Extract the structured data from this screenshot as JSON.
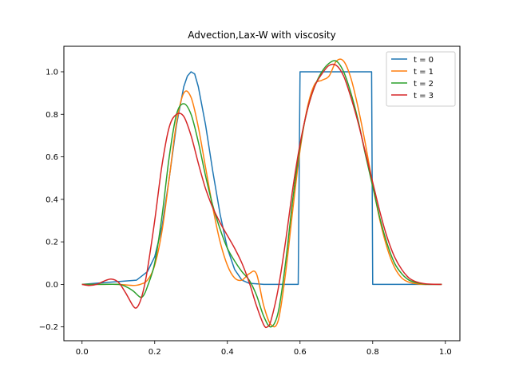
{
  "chart_data": {
    "type": "line",
    "title": "Advection,Lax-W with viscosity",
    "xlabel": "",
    "ylabel": "",
    "xlim": [
      -0.05,
      1.04
    ],
    "ylim": [
      -0.265,
      1.12
    ],
    "xticks": [
      0.0,
      0.2,
      0.4,
      0.6,
      0.8,
      1.0
    ],
    "xtick_labels": [
      "0.0",
      "0.2",
      "0.4",
      "0.6",
      "0.8",
      "1.0"
    ],
    "yticks": [
      -0.2,
      0.0,
      0.2,
      0.4,
      0.6,
      0.8,
      1.0
    ],
    "ytick_labels": [
      "−0.2",
      "0.0",
      "0.2",
      "0.4",
      "0.6",
      "0.8",
      "1.0"
    ],
    "grid": false,
    "legend_position": "top-right",
    "series": [
      {
        "name": "t = 0",
        "color": "#1f77b4",
        "x": [
          0.0,
          0.15,
          0.18,
          0.2,
          0.22,
          0.24,
          0.26,
          0.28,
          0.29,
          0.3,
          0.31,
          0.32,
          0.34,
          0.36,
          0.38,
          0.4,
          0.42,
          0.44,
          0.46,
          0.5,
          0.55,
          0.595,
          0.6,
          0.65,
          0.7,
          0.75,
          0.797,
          0.8,
          0.85,
          0.9,
          0.95,
          0.99
        ],
        "y": [
          0.0,
          0.02,
          0.06,
          0.13,
          0.27,
          0.5,
          0.75,
          0.93,
          0.98,
          1.0,
          0.99,
          0.93,
          0.75,
          0.53,
          0.33,
          0.17,
          0.07,
          0.02,
          0.005,
          0.0,
          0.0,
          0.0,
          1.0,
          1.0,
          1.0,
          1.0,
          1.0,
          0.0,
          0.0,
          0.0,
          0.0,
          0.0
        ]
      },
      {
        "name": "t = 1",
        "color": "#ff7f0e",
        "x": [
          0.0,
          0.05,
          0.1,
          0.14,
          0.16,
          0.18,
          0.2,
          0.22,
          0.24,
          0.26,
          0.28,
          0.3,
          0.32,
          0.34,
          0.36,
          0.38,
          0.4,
          0.42,
          0.44,
          0.46,
          0.48,
          0.5,
          0.52,
          0.54,
          0.56,
          0.58,
          0.6,
          0.62,
          0.64,
          0.66,
          0.68,
          0.7,
          0.72,
          0.74,
          0.76,
          0.78,
          0.8,
          0.82,
          0.84,
          0.86,
          0.88,
          0.9,
          0.92,
          0.94,
          0.96,
          0.99
        ],
        "y": [
          0.0,
          0.0,
          0.0,
          -0.005,
          0.0,
          0.02,
          0.09,
          0.25,
          0.5,
          0.76,
          0.9,
          0.88,
          0.74,
          0.55,
          0.36,
          0.2,
          0.09,
          0.03,
          0.02,
          0.05,
          0.05,
          -0.1,
          -0.19,
          -0.17,
          0.05,
          0.35,
          0.63,
          0.83,
          0.94,
          0.96,
          0.98,
          1.05,
          1.05,
          0.97,
          0.83,
          0.66,
          0.47,
          0.3,
          0.17,
          0.08,
          0.03,
          0.01,
          0.003,
          0.0,
          0.0,
          0.0
        ]
      },
      {
        "name": "t = 2",
        "color": "#2ca02c",
        "x": [
          0.0,
          0.05,
          0.1,
          0.12,
          0.14,
          0.16,
          0.17,
          0.18,
          0.2,
          0.22,
          0.24,
          0.26,
          0.28,
          0.3,
          0.32,
          0.34,
          0.36,
          0.38,
          0.4,
          0.42,
          0.44,
          0.46,
          0.48,
          0.5,
          0.52,
          0.54,
          0.56,
          0.58,
          0.6,
          0.62,
          0.64,
          0.66,
          0.68,
          0.7,
          0.72,
          0.74,
          0.76,
          0.78,
          0.8,
          0.82,
          0.84,
          0.86,
          0.88,
          0.9,
          0.92,
          0.94,
          0.96,
          0.99
        ],
        "y": [
          0.0,
          0.0,
          0.0,
          -0.01,
          -0.03,
          -0.06,
          -0.05,
          -0.01,
          0.1,
          0.32,
          0.6,
          0.8,
          0.85,
          0.8,
          0.67,
          0.51,
          0.37,
          0.26,
          0.17,
          0.11,
          0.06,
          0.02,
          -0.05,
          -0.15,
          -0.2,
          -0.13,
          0.1,
          0.4,
          0.65,
          0.82,
          0.93,
          1.0,
          1.04,
          1.05,
          1.0,
          0.9,
          0.77,
          0.61,
          0.46,
          0.31,
          0.19,
          0.1,
          0.05,
          0.02,
          0.008,
          0.002,
          0.0,
          0.0
        ]
      },
      {
        "name": "t = 3",
        "color": "#d62728",
        "x": [
          0.0,
          0.02,
          0.04,
          0.06,
          0.08,
          0.1,
          0.12,
          0.14,
          0.15,
          0.16,
          0.17,
          0.18,
          0.2,
          0.22,
          0.24,
          0.26,
          0.28,
          0.3,
          0.32,
          0.34,
          0.36,
          0.38,
          0.4,
          0.42,
          0.44,
          0.46,
          0.48,
          0.5,
          0.51,
          0.52,
          0.54,
          0.56,
          0.58,
          0.6,
          0.62,
          0.64,
          0.66,
          0.68,
          0.7,
          0.72,
          0.74,
          0.76,
          0.78,
          0.8,
          0.82,
          0.84,
          0.86,
          0.88,
          0.9,
          0.92,
          0.94,
          0.96,
          0.99
        ],
        "y": [
          0.0,
          -0.005,
          0.0,
          0.015,
          0.025,
          0.01,
          -0.04,
          -0.1,
          -0.11,
          -0.08,
          -0.02,
          0.07,
          0.3,
          0.56,
          0.74,
          0.8,
          0.79,
          0.7,
          0.57,
          0.45,
          0.36,
          0.29,
          0.23,
          0.17,
          0.1,
          0.01,
          -0.1,
          -0.19,
          -0.2,
          -0.17,
          -0.02,
          0.2,
          0.45,
          0.66,
          0.82,
          0.93,
          0.99,
          1.03,
          1.03,
          0.98,
          0.88,
          0.76,
          0.62,
          0.48,
          0.34,
          0.22,
          0.13,
          0.07,
          0.03,
          0.012,
          0.004,
          0.001,
          0.0
        ]
      }
    ]
  }
}
